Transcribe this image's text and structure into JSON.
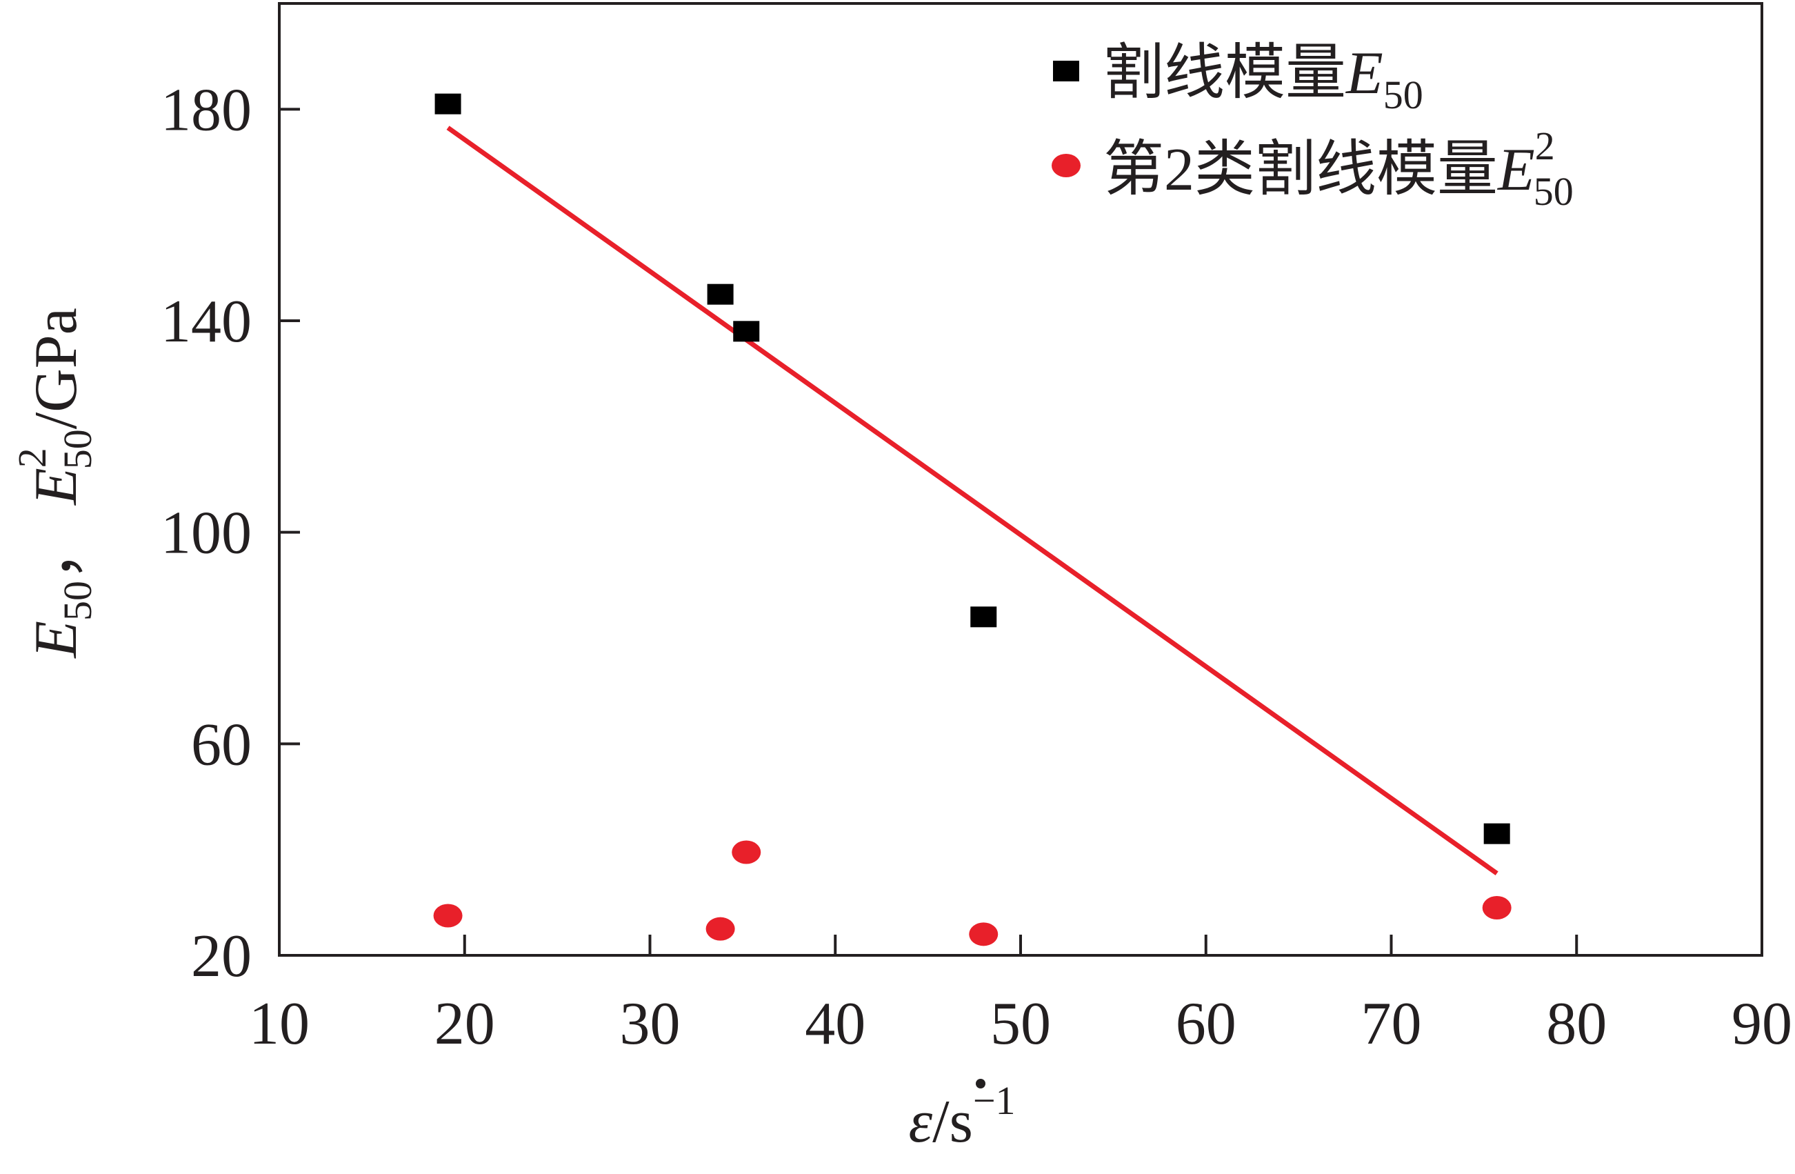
{
  "chart_data": {
    "type": "scatter",
    "xlabel": {
      "base": "ε",
      "unit": "/s",
      "exp": "−1"
    },
    "ylabel": {
      "a_base": "E",
      "a_sub": "50",
      "sep": "，",
      "b_base": "E",
      "b_sup": "2",
      "b_sub": "50",
      "unit": "/GPa"
    },
    "xlim": [
      10,
      90
    ],
    "ylim": [
      20,
      200
    ],
    "x_ticks": [
      10,
      20,
      30,
      40,
      50,
      60,
      70,
      80,
      90
    ],
    "y_ticks": [
      20,
      60,
      100,
      140,
      180
    ],
    "grid": false,
    "legend_position": "top-right",
    "series": [
      {
        "name": {
          "text": "割线模量",
          "base": "E",
          "sub": "50"
        },
        "marker": "square",
        "color": "#000000",
        "x": [
          19.1,
          33.8,
          35.2,
          48.0,
          75.7
        ],
        "y": [
          181,
          145,
          138,
          84,
          43
        ]
      },
      {
        "name": {
          "text": "第2类割线模量",
          "base": "E",
          "sup": "2",
          "sub": "50"
        },
        "marker": "circle",
        "color": "#e8202a",
        "x": [
          19.1,
          33.8,
          35.2,
          48.0,
          75.7
        ],
        "y": [
          27.5,
          25,
          39.5,
          24,
          29
        ]
      }
    ],
    "fit_line": {
      "color": "#e8202a",
      "x": [
        19.1,
        75.7
      ],
      "y": [
        176.5,
        35.5
      ]
    }
  }
}
